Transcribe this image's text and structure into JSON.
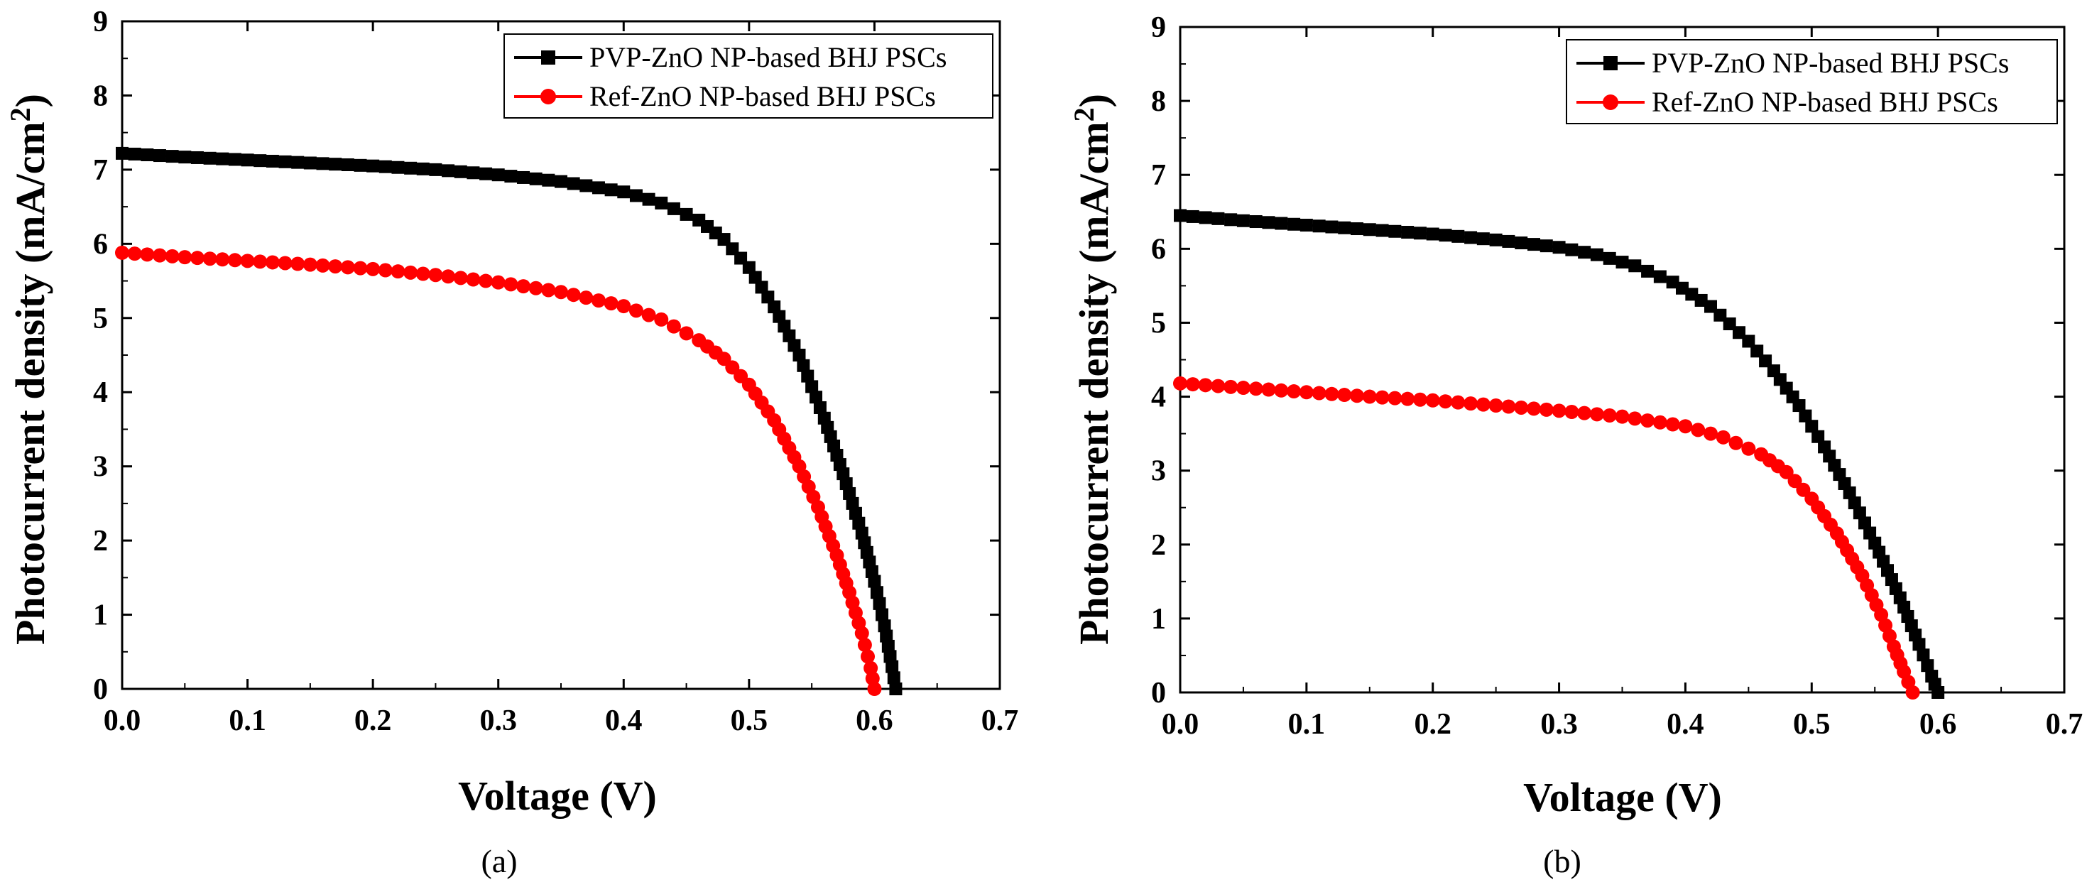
{
  "chart_data": [
    {
      "type": "line",
      "panel_label": "(a)",
      "xlabel": "Voltage (V)",
      "ylabel_main": "Photocurrent density (mA/cm",
      "ylabel_sup": "2",
      "ylabel_close": ")",
      "xlim": [
        0.0,
        0.7
      ],
      "ylim": [
        0,
        9
      ],
      "xticks": [
        "0.0",
        "0.1",
        "0.2",
        "0.3",
        "0.4",
        "0.5",
        "0.6",
        "0.7"
      ],
      "yticks": [
        "0",
        "1",
        "2",
        "3",
        "4",
        "5",
        "6",
        "7",
        "8",
        "9"
      ],
      "legend_position": "top-right",
      "series": [
        {
          "name": "PVP-ZnO NP-based BHJ PSCs",
          "color": "#000000",
          "marker": "square",
          "points": [
            [
              0.0,
              7.22
            ],
            [
              0.05,
              7.17
            ],
            [
              0.1,
              7.13
            ],
            [
              0.15,
              7.09
            ],
            [
              0.2,
              7.05
            ],
            [
              0.25,
              7.0
            ],
            [
              0.3,
              6.93
            ],
            [
              0.35,
              6.84
            ],
            [
              0.4,
              6.7
            ],
            [
              0.43,
              6.55
            ],
            [
              0.46,
              6.32
            ],
            [
              0.48,
              6.06
            ],
            [
              0.5,
              5.68
            ],
            [
              0.52,
              5.15
            ],
            [
              0.54,
              4.5
            ],
            [
              0.56,
              3.65
            ],
            [
              0.575,
              2.9
            ],
            [
              0.59,
              2.1
            ],
            [
              0.6,
              1.45
            ],
            [
              0.608,
              0.85
            ],
            [
              0.614,
              0.3
            ],
            [
              0.617,
              0.0
            ]
          ]
        },
        {
          "name": "Ref-ZnO NP-based BHJ PSCs",
          "color": "#ff0000",
          "marker": "circle",
          "points": [
            [
              0.0,
              5.88
            ],
            [
              0.05,
              5.82
            ],
            [
              0.1,
              5.77
            ],
            [
              0.15,
              5.72
            ],
            [
              0.2,
              5.66
            ],
            [
              0.25,
              5.58
            ],
            [
              0.3,
              5.48
            ],
            [
              0.35,
              5.35
            ],
            [
              0.4,
              5.16
            ],
            [
              0.43,
              4.98
            ],
            [
              0.46,
              4.7
            ],
            [
              0.48,
              4.45
            ],
            [
              0.5,
              4.1
            ],
            [
              0.52,
              3.62
            ],
            [
              0.54,
              3.0
            ],
            [
              0.555,
              2.45
            ],
            [
              0.57,
              1.8
            ],
            [
              0.58,
              1.3
            ],
            [
              0.59,
              0.75
            ],
            [
              0.597,
              0.28
            ],
            [
              0.6,
              0.0
            ]
          ]
        }
      ]
    },
    {
      "type": "line",
      "panel_label": "(b)",
      "xlabel": "Voltage (V)",
      "ylabel_main": "Photocurrent density (mA/cm",
      "ylabel_sup": "2",
      "ylabel_close": ")",
      "xlim": [
        0.0,
        0.7
      ],
      "ylim": [
        0,
        9
      ],
      "xticks": [
        "0.0",
        "0.1",
        "0.2",
        "0.3",
        "0.4",
        "0.5",
        "0.6",
        "0.7"
      ],
      "yticks": [
        "0",
        "1",
        "2",
        "3",
        "4",
        "5",
        "6",
        "7",
        "8",
        "9"
      ],
      "legend_position": "top-right",
      "series": [
        {
          "name": "PVP-ZnO NP-based BHJ PSCs",
          "color": "#000000",
          "marker": "square",
          "points": [
            [
              0.0,
              6.45
            ],
            [
              0.05,
              6.38
            ],
            [
              0.1,
              6.32
            ],
            [
              0.15,
              6.26
            ],
            [
              0.2,
              6.2
            ],
            [
              0.25,
              6.12
            ],
            [
              0.3,
              6.02
            ],
            [
              0.33,
              5.92
            ],
            [
              0.36,
              5.77
            ],
            [
              0.39,
              5.55
            ],
            [
              0.42,
              5.22
            ],
            [
              0.45,
              4.75
            ],
            [
              0.47,
              4.35
            ],
            [
              0.49,
              3.88
            ],
            [
              0.51,
              3.32
            ],
            [
              0.53,
              2.7
            ],
            [
              0.55,
              2.02
            ],
            [
              0.57,
              1.28
            ],
            [
              0.585,
              0.65
            ],
            [
              0.595,
              0.22
            ],
            [
              0.6,
              0.0
            ]
          ]
        },
        {
          "name": "Ref-ZnO NP-based BHJ PSCs",
          "color": "#ff0000",
          "marker": "circle",
          "points": [
            [
              0.0,
              4.18
            ],
            [
              0.05,
              4.12
            ],
            [
              0.1,
              4.06
            ],
            [
              0.15,
              4.0
            ],
            [
              0.2,
              3.95
            ],
            [
              0.25,
              3.88
            ],
            [
              0.3,
              3.81
            ],
            [
              0.35,
              3.73
            ],
            [
              0.4,
              3.6
            ],
            [
              0.43,
              3.45
            ],
            [
              0.46,
              3.22
            ],
            [
              0.48,
              2.98
            ],
            [
              0.5,
              2.62
            ],
            [
              0.52,
              2.15
            ],
            [
              0.54,
              1.58
            ],
            [
              0.555,
              1.05
            ],
            [
              0.565,
              0.62
            ],
            [
              0.573,
              0.28
            ],
            [
              0.58,
              0.0
            ]
          ]
        }
      ]
    }
  ]
}
